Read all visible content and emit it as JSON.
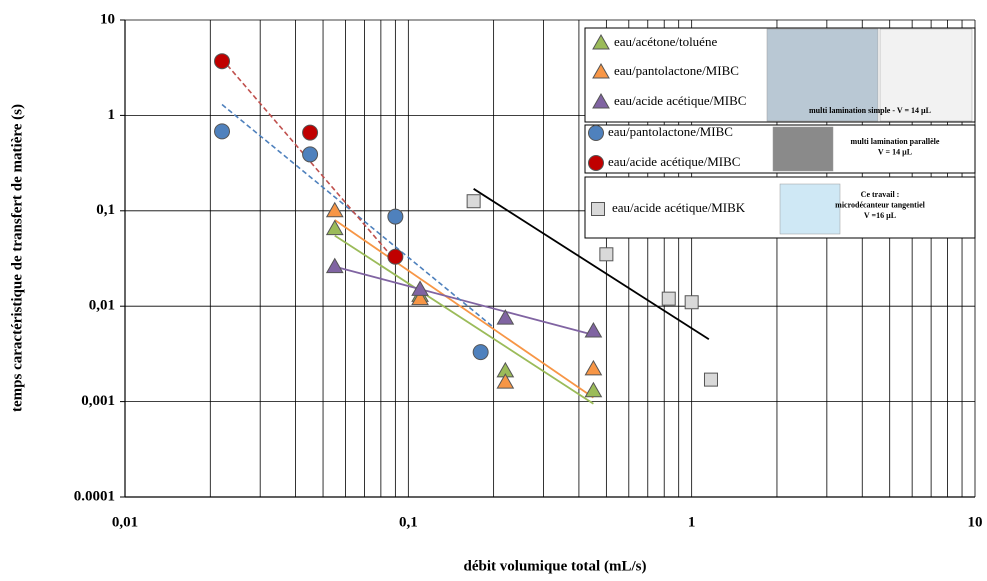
{
  "chart_data": {
    "type": "scatter",
    "x_label": "débit volumique total (mL/s)",
    "y_label": "temps caractéristique de transfert de matière (s)",
    "log_x": true,
    "log_y": true,
    "grid": true,
    "xlim": [
      0.01,
      10
    ],
    "ylim": [
      0.0001,
      10
    ],
    "xticks": [
      {
        "value": 0.01,
        "label": "0,01"
      },
      {
        "value": 0.1,
        "label": "0,1"
      },
      1,
      10
    ],
    "yticks": [
      {
        "value": 0.0001,
        "label": "0.0001"
      },
      {
        "value": 0.001,
        "label": "0,001"
      },
      {
        "value": 0.01,
        "label": "0,01"
      },
      {
        "value": 0.1,
        "label": "0,1"
      },
      1,
      10
    ],
    "legend_captions": [
      [
        "multi lamination simple - V = 14 µL"
      ],
      [
        "multi lamination parallèle",
        "V = 14 µL"
      ],
      [
        "Ce travail :",
        "microdécanteur tangentiel",
        "V =16 µL"
      ]
    ],
    "series": [
      {
        "name": "eau/acétone/toluéne",
        "marker": "triangle",
        "color": "#9bbb59",
        "x": [
          0.055,
          0.11,
          0.22,
          0.45
        ],
        "values": [
          0.065,
          0.013,
          0.0021,
          0.0013
        ],
        "trend": {
          "x": [
            0.055,
            0.45
          ],
          "y": [
            0.055,
            0.00095
          ],
          "color": "#9bbb59",
          "dashed": false
        }
      },
      {
        "name": "eau/pantolactone/MIBC",
        "marker": "triangle",
        "color": "#f79646",
        "x": [
          0.055,
          0.11,
          0.22,
          0.45
        ],
        "values": [
          0.1,
          0.012,
          0.0016,
          0.0022
        ],
        "trend": {
          "x": [
            0.055,
            0.45
          ],
          "y": [
            0.08,
            0.0011
          ],
          "color": "#f79646",
          "dashed": false
        }
      },
      {
        "name": "eau/acide acétique/MIBC",
        "marker": "triangle",
        "color": "#8064a2",
        "x": [
          0.055,
          0.11,
          0.22,
          0.45
        ],
        "values": [
          0.026,
          0.015,
          0.0075,
          0.0055
        ],
        "trend": {
          "x": [
            0.055,
            0.45
          ],
          "y": [
            0.026,
            0.005
          ],
          "color": "#8064a2",
          "dashed": false
        }
      },
      {
        "name": "eau/pantolactone/MIBC",
        "marker": "circle",
        "color": "#4f81bd",
        "x": [
          0.022,
          0.045,
          0.09,
          0.18
        ],
        "values": [
          0.68,
          0.39,
          0.087,
          0.0033
        ],
        "trend": {
          "x": [
            0.022,
            0.2
          ],
          "y": [
            1.3,
            0.006
          ],
          "color": "#4f81bd",
          "dashed": true
        }
      },
      {
        "name": "eau/acide acétique/MIBC",
        "marker": "circle",
        "color": "#c00000",
        "x": [
          0.022,
          0.045,
          0.09
        ],
        "values": [
          3.7,
          0.66,
          0.033
        ],
        "trend": {
          "x": [
            0.022,
            0.09
          ],
          "y": [
            3.9,
            0.03
          ],
          "color": "#c0504d",
          "dashed": true
        }
      },
      {
        "name": "eau/acide acétique/MIBK",
        "marker": "square",
        "color": "#d9d9d9",
        "x": [
          0.17,
          0.5,
          0.83,
          1.0,
          1.17
        ],
        "values": [
          0.126,
          0.035,
          0.012,
          0.011,
          0.0017
        ],
        "trend": {
          "x": [
            0.17,
            1.15
          ],
          "y": [
            0.17,
            0.0045
          ],
          "color": "#000000",
          "dashed": false
        }
      }
    ]
  }
}
